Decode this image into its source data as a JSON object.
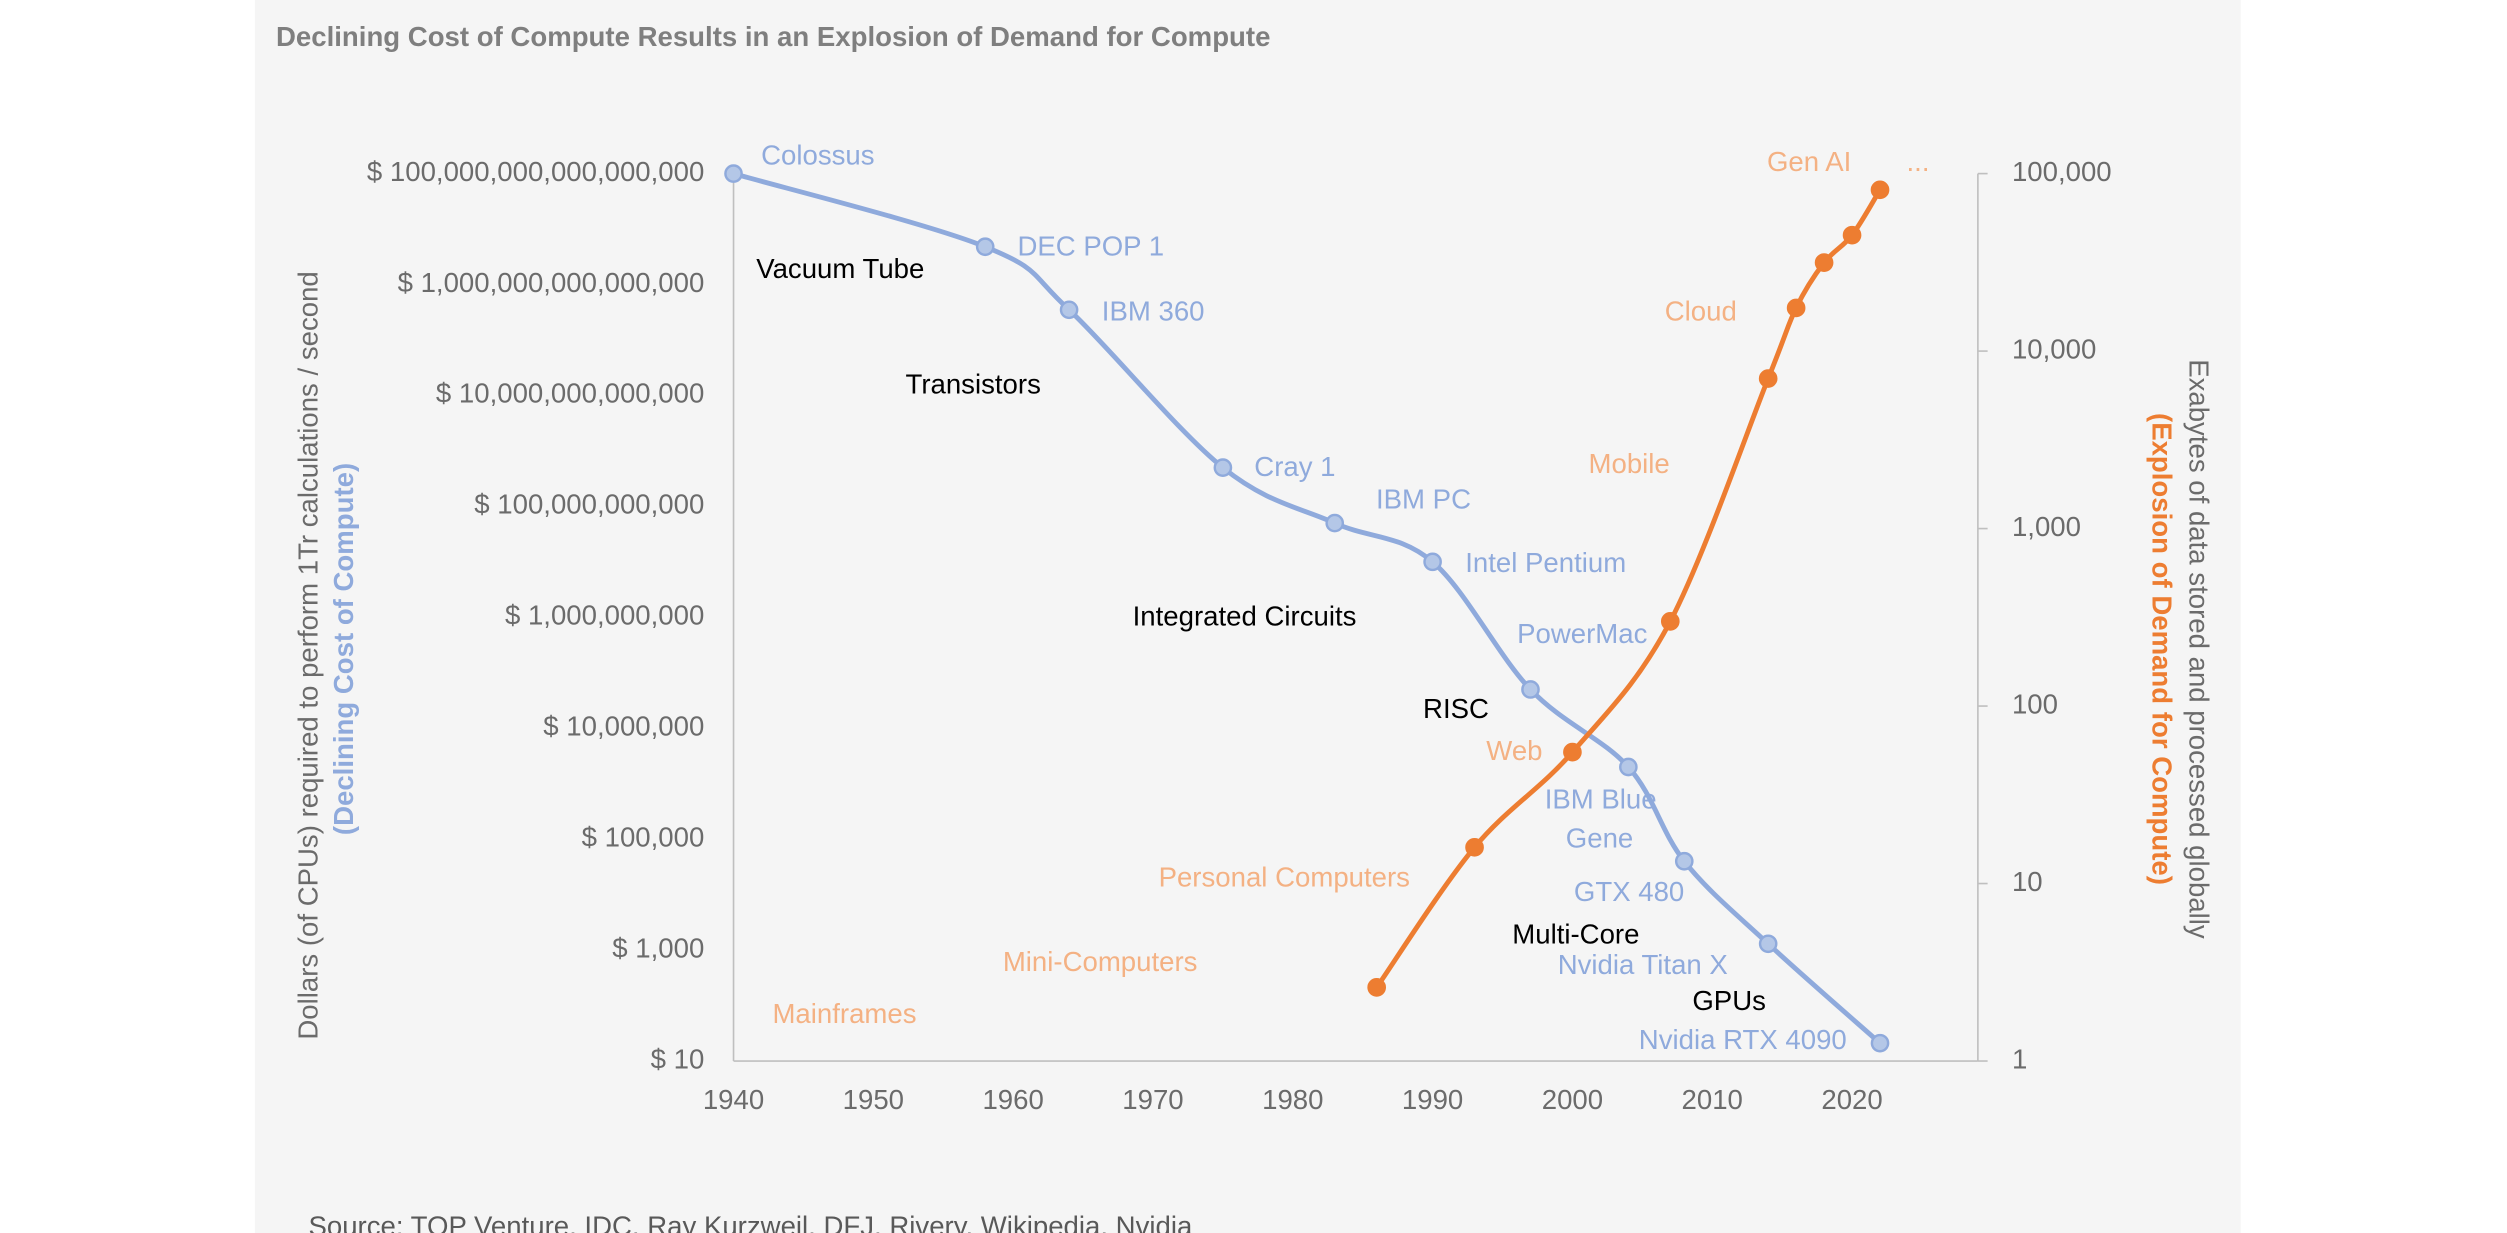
{
  "chart_data": {
    "type": "line",
    "title": "Declining Cost of Compute Results in an Explosion of Demand for Compute",
    "ylabel": "Dollars (of CPUs) required to perform 1Tr calculations / second",
    "ylabel_note": "(Declining Cost of Compute)",
    "y2label": "Exabytes of data stored and processed globally",
    "y2label_note": "(Explosion of Demand for Compute)",
    "source": "Source: TOP Venture, IDC, Ray Kurzweil, DFJ, Rivery, Wikipedia, Nvidia",
    "xlim": [
      1940,
      2029
    ],
    "xticks": [
      1940,
      1950,
      1960,
      1970,
      1980,
      1990,
      2000,
      2010,
      2020
    ],
    "ylog": true,
    "ylim": [
      10,
      100000000000000000
    ],
    "yticks": [
      {
        "value": 10,
        "label": "$ 10"
      },
      {
        "value": 1000,
        "label": "$ 1,000"
      },
      {
        "value": 100000,
        "label": "$ 100,000"
      },
      {
        "value": 10000000,
        "label": "$ 10,000,000"
      },
      {
        "value": 1000000000,
        "label": "$ 1,000,000,000"
      },
      {
        "value": 100000000000,
        "label": "$ 100,000,000,000"
      },
      {
        "value": 10000000000000,
        "label": "$ 10,000,000,000,000"
      },
      {
        "value": 1000000000000000,
        "label": "$ 1,000,000,000,000,000"
      },
      {
        "value": 100000000000000000,
        "label": "$ 100,000,000,000,000,000"
      }
    ],
    "y2log": true,
    "y2lim": [
      1,
      100000
    ],
    "y2ticks": [
      1,
      10,
      100,
      {
        "value": 1000,
        "label": "1,000"
      },
      {
        "value": 10000,
        "label": "10,000"
      },
      {
        "value": 100000,
        "label": "100,000"
      }
    ],
    "series": [
      {
        "color": "#8faadc",
        "marker_color": "#b4c7e7",
        "axis": "y",
        "x": [
          1940,
          1958,
          1964,
          1975,
          1983,
          1990,
          1997,
          2004,
          2008,
          2014,
          2022
        ],
        "values": [
          100000000000000000,
          4800000000000000,
          350000000000000,
          500000000000,
          50000000000,
          10000000000,
          50000000,
          2000000,
          40000,
          1300,
          21
        ]
      },
      {
        "color": "#ed7d31",
        "marker_color": "#ed7d31",
        "axis": "y2",
        "x": [
          1986,
          1993,
          2000,
          2007,
          2014,
          2016,
          2018,
          2020,
          2022
        ],
        "values": [
          2.6,
          16,
          55,
          300,
          7000,
          17500,
          31500,
          45000,
          81000
        ]
      }
    ],
    "annotations": [
      {
        "color": "#8faadc",
        "texts": [
          "Colossus",
          "DEC POP 1",
          "IBM 360",
          "Cray 1",
          "IBM PC",
          "Intel Pentium",
          "PowerMac",
          "IBM Blue",
          "Gene",
          "GTX 480",
          "Nvidia Titan X",
          "Nvidia RTX 4090"
        ]
      },
      {
        "color": "#000000",
        "texts": [
          "Vacuum Tube",
          "Transistors",
          "Integrated Circuits",
          "RISC",
          "Multi-Core",
          "GPUs"
        ]
      },
      {
        "color": "#f4b183",
        "texts": [
          "Gen  AI",
          "...",
          "Cloud",
          "Mobile",
          "Web",
          "Personal  Computers",
          "Mini-Computers",
          "Mainframes"
        ]
      }
    ]
  }
}
